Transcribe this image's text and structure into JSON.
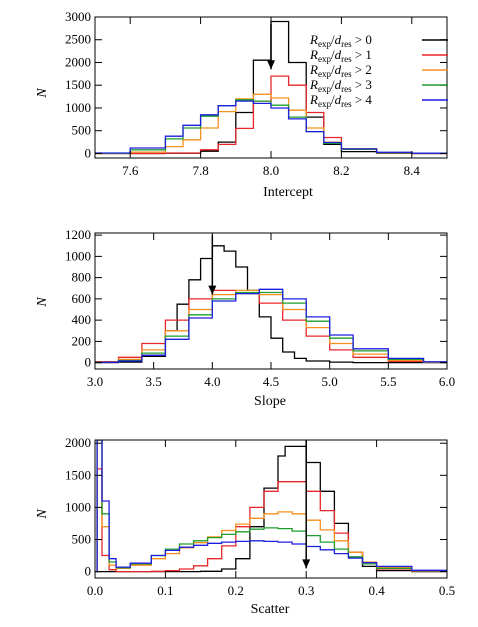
{
  "legend": {
    "entries": [
      {
        "ratio": "R",
        "sub1": "exp",
        "slash": "/",
        "d": "d",
        "sub2": "res",
        "cond": " > 0",
        "color": "#000000"
      },
      {
        "ratio": "R",
        "sub1": "exp",
        "slash": "/",
        "d": "d",
        "sub2": "res",
        "cond": " > 1",
        "color": "#e8262b"
      },
      {
        "ratio": "R",
        "sub1": "exp",
        "slash": "/",
        "d": "d",
        "sub2": "res",
        "cond": " > 2",
        "color": "#f5901e"
      },
      {
        "ratio": "R",
        "sub1": "exp",
        "slash": "/",
        "d": "d",
        "sub2": "res",
        "cond": " > 3",
        "color": "#1f9e2e"
      },
      {
        "ratio": "R",
        "sub1": "exp",
        "slash": "/",
        "d": "d",
        "sub2": "res",
        "cond": " > 4",
        "color": "#1f1fe0"
      }
    ]
  },
  "chart_data": [
    {
      "type": "line",
      "step": true,
      "xlabel": "Intercept",
      "ylabel": "N",
      "xlim": [
        7.5,
        8.5
      ],
      "ylim": [
        -100,
        3000
      ],
      "xticks": [
        "7.6",
        "7.8",
        "8.0",
        "8.2",
        "8.4"
      ],
      "yticks": [
        "0",
        "500",
        "1000",
        "1500",
        "2000",
        "2500",
        "3000"
      ],
      "arrow": {
        "x": 8.0,
        "y_from": 2850,
        "y_to": 1850
      },
      "series": [
        {
          "color": "#000000",
          "x": [
            7.5,
            7.6,
            7.7,
            7.8,
            7.85,
            7.9,
            7.95,
            8.0,
            8.05,
            8.1,
            8.15,
            8.2,
            8.3,
            8.4,
            8.5
          ],
          "y": [
            0,
            0,
            5,
            50,
            250,
            900,
            2050,
            2900,
            2000,
            800,
            200,
            40,
            5,
            0,
            0
          ]
        },
        {
          "color": "#e8262b",
          "x": [
            7.5,
            7.6,
            7.7,
            7.8,
            7.85,
            7.9,
            7.95,
            8.0,
            8.05,
            8.1,
            8.15,
            8.2,
            8.3,
            8.4,
            8.5
          ],
          "y": [
            0,
            0,
            10,
            80,
            200,
            550,
            1150,
            1700,
            1500,
            900,
            350,
            100,
            15,
            0,
            0
          ]
        },
        {
          "color": "#f5901e",
          "x": [
            7.5,
            7.6,
            7.7,
            7.75,
            7.8,
            7.85,
            7.9,
            7.95,
            8.0,
            8.05,
            8.1,
            8.15,
            8.2,
            8.3,
            8.4,
            8.5
          ],
          "y": [
            0,
            30,
            150,
            300,
            560,
            920,
            1200,
            1300,
            1220,
            950,
            560,
            250,
            100,
            15,
            0,
            0
          ]
        },
        {
          "color": "#1f9e2e",
          "x": [
            7.5,
            7.6,
            7.7,
            7.75,
            7.8,
            7.85,
            7.9,
            7.95,
            8.0,
            8.05,
            8.1,
            8.15,
            8.2,
            8.3,
            8.4,
            8.5
          ],
          "y": [
            5,
            80,
            320,
            560,
            820,
            1050,
            1180,
            1150,
            1060,
            800,
            480,
            220,
            90,
            20,
            5,
            0
          ]
        },
        {
          "color": "#1f1fe0",
          "x": [
            7.5,
            7.6,
            7.7,
            7.75,
            7.8,
            7.85,
            7.9,
            7.95,
            8.0,
            8.05,
            8.1,
            8.15,
            8.2,
            8.3,
            8.4,
            8.5
          ],
          "y": [
            10,
            120,
            380,
            620,
            850,
            1050,
            1150,
            1100,
            1000,
            760,
            480,
            240,
            100,
            25,
            5,
            0
          ]
        }
      ]
    },
    {
      "type": "line",
      "step": true,
      "xlabel": "Slope",
      "ylabel": "N",
      "xlim": [
        3.0,
        6.0
      ],
      "ylim": [
        -60,
        1220
      ],
      "xticks": [
        "3.0",
        "3.5",
        "4.0",
        "4.5",
        "5.0",
        "5.5",
        "6.0"
      ],
      "yticks": [
        "0",
        "200",
        "400",
        "600",
        "800",
        "1000",
        "1200"
      ],
      "arrow": {
        "x": 4.0,
        "y_from": 1200,
        "y_to": 640
      },
      "series": [
        {
          "color": "#000000",
          "x": [
            3.0,
            3.2,
            3.4,
            3.6,
            3.7,
            3.8,
            3.9,
            4.0,
            4.1,
            4.2,
            4.3,
            4.4,
            4.5,
            4.6,
            4.7,
            4.8,
            5.0,
            5.2,
            6.0
          ],
          "y": [
            0,
            5,
            60,
            300,
            550,
            780,
            980,
            1100,
            1050,
            900,
            680,
            430,
            230,
            100,
            40,
            15,
            5,
            0,
            0
          ]
        },
        {
          "color": "#e8262b",
          "x": [
            3.0,
            3.2,
            3.4,
            3.6,
            3.8,
            4.0,
            4.2,
            4.4,
            4.6,
            4.8,
            5.0,
            5.2,
            5.5,
            5.8,
            6.0
          ],
          "y": [
            10,
            50,
            180,
            400,
            600,
            680,
            650,
            560,
            400,
            250,
            120,
            50,
            12,
            2,
            0
          ]
        },
        {
          "color": "#f5901e",
          "x": [
            3.0,
            3.2,
            3.4,
            3.6,
            3.8,
            4.0,
            4.2,
            4.4,
            4.6,
            4.8,
            5.0,
            5.2,
            5.5,
            5.8,
            6.0
          ],
          "y": [
            5,
            30,
            120,
            300,
            500,
            640,
            680,
            640,
            500,
            330,
            180,
            80,
            20,
            4,
            0
          ]
        },
        {
          "color": "#1f9e2e",
          "x": [
            3.0,
            3.2,
            3.4,
            3.6,
            3.8,
            4.0,
            4.2,
            4.4,
            4.6,
            4.8,
            5.0,
            5.2,
            5.5,
            5.8,
            6.0
          ],
          "y": [
            3,
            20,
            90,
            250,
            450,
            600,
            660,
            660,
            560,
            390,
            230,
            110,
            30,
            6,
            0
          ]
        },
        {
          "color": "#1f1fe0",
          "x": [
            3.0,
            3.2,
            3.4,
            3.6,
            3.8,
            4.0,
            4.2,
            4.4,
            4.6,
            4.8,
            5.0,
            5.2,
            5.5,
            5.8,
            6.0
          ],
          "y": [
            2,
            15,
            70,
            220,
            420,
            580,
            650,
            690,
            600,
            430,
            260,
            130,
            40,
            8,
            0
          ]
        }
      ]
    },
    {
      "type": "line",
      "step": true,
      "xlabel": "Scatter",
      "ylabel": "N",
      "xlim": [
        0.0,
        0.5
      ],
      "ylim": [
        -100,
        2050
      ],
      "xticks": [
        "0.0",
        "0.1",
        "0.2",
        "0.3",
        "0.4",
        "0.5"
      ],
      "yticks": [
        "0",
        "500",
        "1000",
        "1500",
        "2000"
      ],
      "arrow": {
        "x": 0.3,
        "y_from": 2050,
        "y_to": 50
      },
      "series": [
        {
          "color": "#000000",
          "x": [
            0.0,
            0.1,
            0.15,
            0.18,
            0.2,
            0.22,
            0.24,
            0.26,
            0.27,
            0.28,
            0.3,
            0.32,
            0.34,
            0.36,
            0.38,
            0.4,
            0.45,
            0.5
          ],
          "y": [
            0,
            0,
            5,
            40,
            200,
            700,
            1300,
            1800,
            1950,
            1950,
            1700,
            1250,
            750,
            300,
            80,
            15,
            0,
            0
          ]
        },
        {
          "color": "#e8262b",
          "x": [
            0.0,
            0.003,
            0.01,
            0.02,
            0.03,
            0.05,
            0.08,
            0.1,
            0.12,
            0.14,
            0.16,
            0.18,
            0.2,
            0.22,
            0.24,
            0.26,
            0.28,
            0.3,
            0.32,
            0.34,
            0.36,
            0.38,
            0.4,
            0.45,
            0.5
          ],
          "y": [
            0,
            1600,
            250,
            30,
            0,
            0,
            5,
            15,
            40,
            90,
            200,
            400,
            700,
            1000,
            1250,
            1400,
            1400,
            1250,
            950,
            600,
            300,
            120,
            40,
            5,
            0
          ]
        },
        {
          "color": "#f5901e",
          "x": [
            0.0,
            0.003,
            0.01,
            0.02,
            0.03,
            0.05,
            0.08,
            0.1,
            0.12,
            0.14,
            0.16,
            0.18,
            0.2,
            0.22,
            0.24,
            0.26,
            0.28,
            0.3,
            0.32,
            0.34,
            0.36,
            0.38,
            0.4,
            0.45,
            0.5
          ],
          "y": [
            0,
            2050,
            700,
            100,
            50,
            100,
            200,
            280,
            370,
            450,
            540,
            640,
            740,
            830,
            900,
            930,
            900,
            800,
            650,
            480,
            300,
            150,
            60,
            10,
            0
          ]
        },
        {
          "color": "#1f9e2e",
          "x": [
            0.0,
            0.003,
            0.01,
            0.02,
            0.03,
            0.05,
            0.08,
            0.1,
            0.12,
            0.14,
            0.16,
            0.18,
            0.2,
            0.22,
            0.24,
            0.26,
            0.28,
            0.3,
            0.32,
            0.34,
            0.36,
            0.38,
            0.4,
            0.45,
            0.5
          ],
          "y": [
            0,
            2050,
            900,
            150,
            60,
            120,
            250,
            350,
            430,
            480,
            530,
            580,
            620,
            660,
            680,
            670,
            630,
            560,
            460,
            350,
            230,
            120,
            50,
            10,
            0
          ]
        },
        {
          "color": "#1f1fe0",
          "x": [
            0.0,
            0.003,
            0.01,
            0.02,
            0.03,
            0.05,
            0.08,
            0.1,
            0.12,
            0.14,
            0.16,
            0.18,
            0.2,
            0.22,
            0.24,
            0.26,
            0.28,
            0.3,
            0.32,
            0.34,
            0.36,
            0.38,
            0.4,
            0.45,
            0.5
          ],
          "y": [
            0,
            2050,
            1100,
            200,
            70,
            130,
            250,
            330,
            380,
            410,
            440,
            460,
            470,
            480,
            470,
            460,
            430,
            390,
            340,
            280,
            210,
            140,
            80,
            20,
            5
          ]
        }
      ]
    }
  ]
}
